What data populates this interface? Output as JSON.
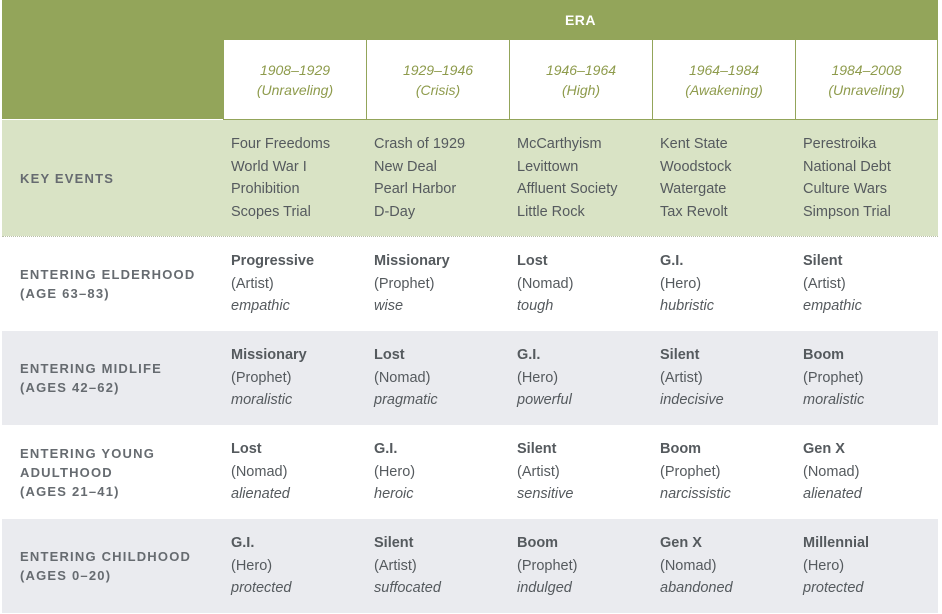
{
  "header": {
    "era_label": "ERA"
  },
  "eras": [
    {
      "years": "1908–1929",
      "name": "(Unraveling)"
    },
    {
      "years": "1929–1946",
      "name": "(Crisis)"
    },
    {
      "years": "1946–1964",
      "name": "(High)"
    },
    {
      "years": "1964–1984",
      "name": "(Awakening)"
    },
    {
      "years": "1984–2008",
      "name": "(Unraveling)"
    }
  ],
  "key_events": {
    "label": "KEY EVENTS",
    "columns": [
      [
        "Four Freedoms",
        "World War I",
        "Prohibition",
        "Scopes Trial"
      ],
      [
        "Crash of 1929",
        "New Deal",
        "Pearl Harbor",
        "D-Day"
      ],
      [
        "McCarthyism",
        "Levittown",
        "Affluent Society",
        "Little Rock"
      ],
      [
        "Kent State",
        "Woodstock",
        "Watergate",
        "Tax Revolt"
      ],
      [
        "Perestroika",
        "National Debt",
        "Culture Wars",
        "Simpson Trial"
      ]
    ]
  },
  "rows": [
    {
      "label_lines": [
        "ENTERING ELDERHOOD",
        "(AGE 63–83)"
      ],
      "cells": [
        {
          "name": "Progressive",
          "archetype": "(Artist)",
          "trait": "empathic"
        },
        {
          "name": "Missionary",
          "archetype": "(Prophet)",
          "trait": "wise"
        },
        {
          "name": "Lost",
          "archetype": "(Nomad)",
          "trait": "tough"
        },
        {
          "name": "G.I.",
          "archetype": "(Hero)",
          "trait": "hubristic"
        },
        {
          "name": "Silent",
          "archetype": "(Artist)",
          "trait": "empathic"
        }
      ]
    },
    {
      "label_lines": [
        "ENTERING MIDLIFE",
        "(AGES 42–62)"
      ],
      "cells": [
        {
          "name": "Missionary",
          "archetype": "(Prophet)",
          "trait": "moralistic"
        },
        {
          "name": "Lost",
          "archetype": "(Nomad)",
          "trait": "pragmatic"
        },
        {
          "name": "G.I.",
          "archetype": "(Hero)",
          "trait": "powerful"
        },
        {
          "name": "Silent",
          "archetype": "(Artist)",
          "trait": "indecisive"
        },
        {
          "name": "Boom",
          "archetype": "(Prophet)",
          "trait": "moralistic"
        }
      ]
    },
    {
      "label_lines": [
        "ENTERING YOUNG",
        "ADULTHOOD",
        "(AGES 21–41)"
      ],
      "cells": [
        {
          "name": "Lost",
          "archetype": "(Nomad)",
          "trait": "alienated"
        },
        {
          "name": "G.I.",
          "archetype": "(Hero)",
          "trait": "heroic"
        },
        {
          "name": "Silent",
          "archetype": "(Artist)",
          "trait": "sensitive"
        },
        {
          "name": "Boom",
          "archetype": "(Prophet)",
          "trait": "narcissistic"
        },
        {
          "name": "Gen X",
          "archetype": "(Nomad)",
          "trait": "alienated"
        }
      ]
    },
    {
      "label_lines": [
        "ENTERING CHILDHOOD",
        "(AGES 0–20)"
      ],
      "cells": [
        {
          "name": "G.I.",
          "archetype": "(Hero)",
          "trait": "protected"
        },
        {
          "name": "Silent",
          "archetype": "(Artist)",
          "trait": "suffocated"
        },
        {
          "name": "Boom",
          "archetype": "(Prophet)",
          "trait": "indulged"
        },
        {
          "name": "Gen X",
          "archetype": "(Nomad)",
          "trait": "abandoned"
        },
        {
          "name": "Millennial",
          "archetype": "(Hero)",
          "trait": "protected"
        }
      ]
    }
  ],
  "colors": {
    "header_green": "#93a55a",
    "events_green": "#d9e3c5",
    "row_white": "#ffffff",
    "row_grey": "#eaebef",
    "era_text": "#8e9b4c",
    "label_text": "#666b70",
    "cell_text": "#555a5e"
  }
}
